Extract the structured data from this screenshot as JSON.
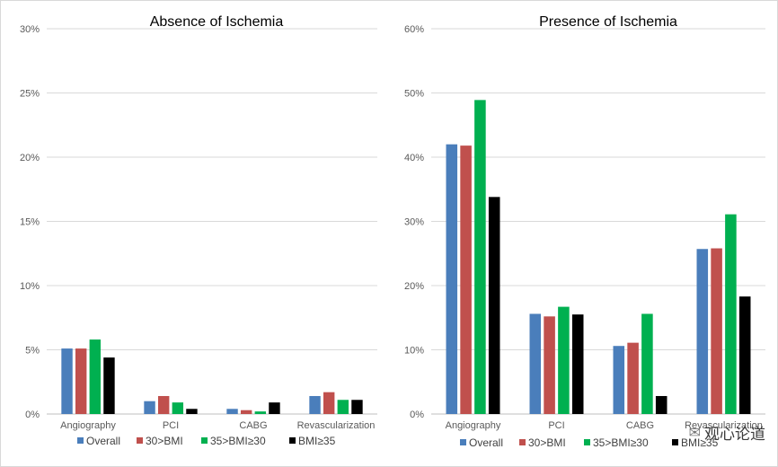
{
  "chart_data": [
    {
      "type": "bar",
      "title": "Absence of Ischemia",
      "categories": [
        "Angiography",
        "PCI",
        "CABG",
        "Revascularization"
      ],
      "ylim": [
        0,
        30
      ],
      "yticks": [
        "0%",
        "5%",
        "10%",
        "15%",
        "20%",
        "25%",
        "30%"
      ],
      "legend_position": "bottom",
      "grid": true,
      "series": [
        {
          "name": "Overall",
          "color": "#4a7ebb",
          "values": [
            5.1,
            1.0,
            0.4,
            1.4
          ]
        },
        {
          "name": "30>BMI",
          "color": "#c0504d",
          "values": [
            5.1,
            1.4,
            0.3,
            1.7
          ]
        },
        {
          "name": "35>BMI≥30",
          "color": "#00b050",
          "values": [
            5.8,
            0.9,
            0.2,
            1.1
          ]
        },
        {
          "name": "BMI≥35",
          "color": "#000000",
          "values": [
            4.4,
            0.4,
            0.9,
            1.1
          ]
        }
      ]
    },
    {
      "type": "bar",
      "title": "Presence of Ischemia",
      "categories": [
        "Angiography",
        "PCI",
        "CABG",
        "Revascularization"
      ],
      "ylim": [
        0,
        60
      ],
      "yticks": [
        "0%",
        "10%",
        "20%",
        "30%",
        "40%",
        "50%",
        "60%"
      ],
      "legend_position": "bottom",
      "grid": true,
      "series": [
        {
          "name": "Overall",
          "color": "#4a7ebb",
          "values": [
            42.0,
            15.6,
            10.6,
            25.7
          ]
        },
        {
          "name": "30>BMI",
          "color": "#c0504d",
          "values": [
            41.8,
            15.2,
            11.1,
            25.8
          ]
        },
        {
          "name": "35>BMI≥30",
          "color": "#00b050",
          "values": [
            48.9,
            16.7,
            15.6,
            31.1
          ]
        },
        {
          "name": "BMI≥35",
          "color": "#000000",
          "values": [
            33.8,
            15.5,
            2.8,
            18.3
          ]
        }
      ]
    }
  ],
  "watermark": {
    "text": "观心论道",
    "icon": "wechat-icon"
  }
}
